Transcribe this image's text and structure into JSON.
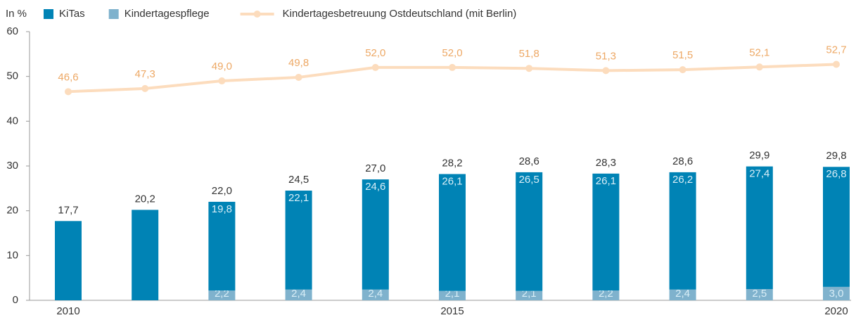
{
  "chart_data": {
    "type": "bar",
    "stacked": true,
    "y_unit_label": "In %",
    "categories": [
      "2010",
      null,
      null,
      null,
      null,
      "2015",
      null,
      null,
      null,
      null,
      "2020"
    ],
    "ylim": [
      0,
      60
    ],
    "yticks": [
      0,
      10,
      20,
      30,
      40,
      50,
      60
    ],
    "series": [
      {
        "name": "KiTas",
        "color": "#0083b5",
        "values": [
          17.7,
          20.2,
          19.8,
          22.1,
          24.6,
          26.1,
          26.5,
          26.1,
          26.2,
          27.4,
          26.8
        ],
        "value_labels": [
          null,
          null,
          "19,8",
          "22,1",
          "24,6",
          "26,1",
          "26,5",
          "26,1",
          "26,2",
          "27,4",
          "26,8"
        ]
      },
      {
        "name": "Kindertagespflege",
        "color": "#7fb2cd",
        "values": [
          null,
          null,
          2.2,
          2.4,
          2.4,
          2.1,
          2.1,
          2.2,
          2.4,
          2.5,
          3.0
        ],
        "value_labels": [
          null,
          null,
          "2,2",
          "2,4",
          "2,4",
          "2,1",
          "2,1",
          "2,2",
          "2,4",
          "2,5",
          "3,0"
        ]
      }
    ],
    "totals": [
      17.7,
      20.2,
      22.0,
      24.5,
      27.0,
      28.2,
      28.6,
      28.3,
      28.6,
      29.9,
      29.8
    ],
    "total_labels": [
      "17,7",
      "20,2",
      "22,0",
      "24,5",
      "27,0",
      "28,2",
      "28,6",
      "28,3",
      "28,6",
      "29,9",
      "29,8"
    ],
    "line": {
      "type": "line",
      "name": "Kindertagesbetreuung Ostdeutschland (mit Berlin)",
      "color": "#fcdcbd",
      "label_color": "#eda865",
      "values": [
        46.6,
        47.3,
        49.0,
        49.8,
        52.0,
        52.0,
        51.8,
        51.3,
        51.5,
        52.1,
        52.7
      ],
      "value_labels": [
        "46,6",
        "47,3",
        "49,0",
        "49,8",
        "52,0",
        "52,0",
        "51,8",
        "51,3",
        "51,5",
        "52,1",
        "52,7"
      ]
    }
  }
}
